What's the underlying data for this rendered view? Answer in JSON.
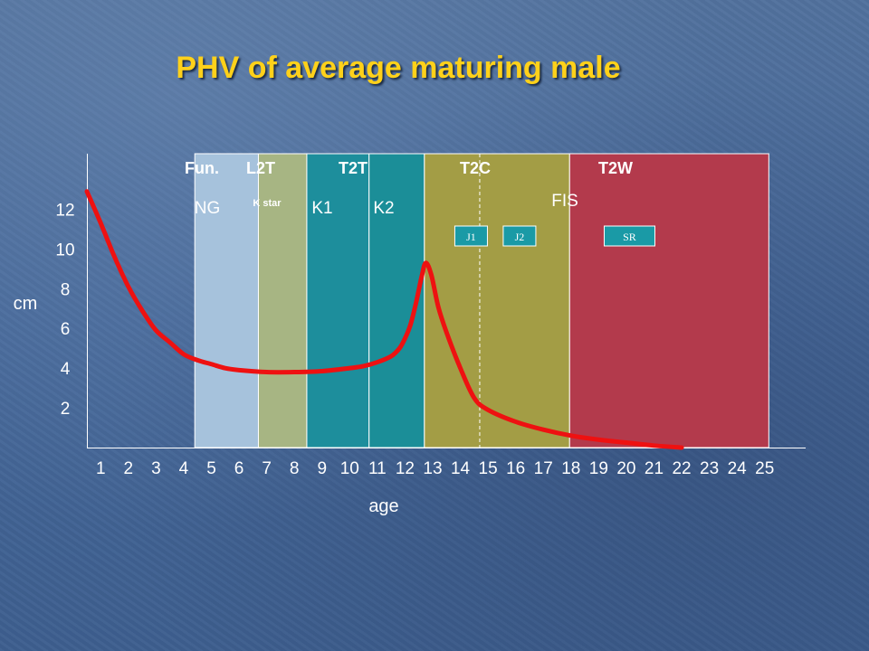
{
  "title": "PHV of average maturing male",
  "chart_data": {
    "type": "line",
    "title": "PHV of average maturing male",
    "xlabel": "age",
    "ylabel": "cm",
    "x_ticks": [
      1,
      2,
      3,
      4,
      5,
      6,
      7,
      8,
      9,
      10,
      11,
      12,
      13,
      14,
      15,
      16,
      17,
      18,
      19,
      20,
      21,
      22,
      23,
      24,
      25
    ],
    "y_ticks": [
      2,
      4,
      6,
      8,
      10,
      12
    ],
    "xlim": [
      0.5,
      25.5
    ],
    "ylim": [
      0,
      14.8
    ],
    "grid": false,
    "phases": [
      {
        "label": "Fun.",
        "sublabel": "NG",
        "x_start": 4.4,
        "x_end": 6.7,
        "color": "#a6c2dc"
      },
      {
        "label": "L2T",
        "sublabel": "K star",
        "x_start": 6.7,
        "x_end": 8.45,
        "color": "#a7b583"
      },
      {
        "label": "T2T",
        "sublabel": "K1",
        "x_start": 8.45,
        "x_end": 10.7,
        "color": "#1d8e9c"
      },
      {
        "label": "",
        "sublabel": "K2",
        "x_start": 10.7,
        "x_end": 12.7,
        "color": "#1b8e98"
      },
      {
        "label": "T2C",
        "sublabel": "",
        "x_start": 12.7,
        "x_end": 17.95,
        "color": "#a39d45"
      },
      {
        "label": "T2W",
        "sublabel": "FIS",
        "x_start": 17.95,
        "x_end": 25.15,
        "color": "#b33a4c"
      }
    ],
    "badges": [
      {
        "label": "J1",
        "x": 13.8
      },
      {
        "label": "J2",
        "x": 15.55
      },
      {
        "label": "SR",
        "x": 19.2
      }
    ],
    "dashed_line_x": 14.7,
    "series": [
      {
        "color": "#ee1111",
        "x": [
          0.5,
          1.0,
          1.5,
          2.0,
          2.5,
          3.0,
          3.5,
          4.0,
          4.5,
          5.0,
          5.5,
          6.0,
          7.0,
          8.0,
          9.0,
          10.0,
          10.5,
          11.0,
          11.5,
          11.8,
          12.0,
          12.2,
          12.4,
          12.6,
          12.75,
          12.95,
          13.2,
          13.5,
          14.0,
          14.5,
          15.0,
          16.0,
          17.0,
          18.0,
          19.0,
          20.0,
          21.0,
          22.0
        ],
        "y": [
          12.9,
          11.3,
          9.6,
          8.1,
          6.9,
          5.9,
          5.3,
          4.7,
          4.4,
          4.2,
          4.0,
          3.9,
          3.8,
          3.8,
          3.85,
          4.0,
          4.1,
          4.3,
          4.6,
          5.0,
          5.5,
          6.2,
          7.3,
          8.6,
          9.3,
          8.7,
          7.1,
          5.8,
          4.0,
          2.5,
          1.9,
          1.3,
          0.9,
          0.6,
          0.4,
          0.25,
          0.1,
          0.0
        ]
      }
    ]
  }
}
